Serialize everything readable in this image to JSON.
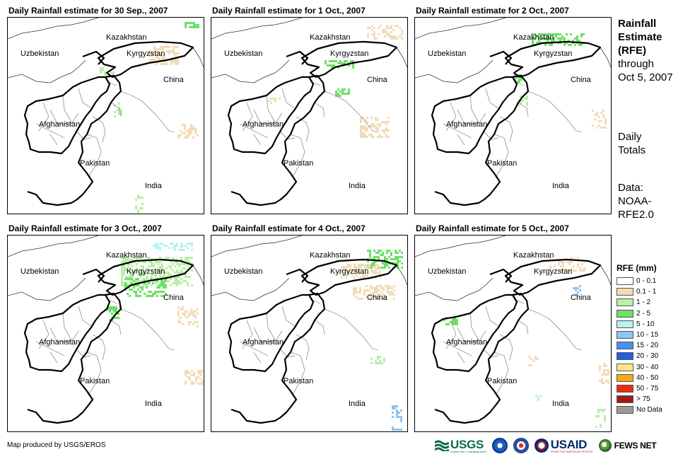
{
  "panels": [
    {
      "title": "Daily Rainfall estimate for 30 Sep., 2007",
      "labels": {
        "kazakhstan": "Kazakhstan",
        "uzbekistan": "Uzbekistan",
        "kyrgyzstan": "Kyrgyzstan",
        "china": "China",
        "afghanistan": "Afghanistan",
        "pakistan": "Pakistan",
        "india": "India"
      }
    },
    {
      "title": "Daily Rainfall estimate for 1 Oct., 2007",
      "labels": {
        "kazakhstan": "Kazakhstan",
        "uzbekistan": "Uzbekistan",
        "kyrgyzstan": "Kyrgyzstan",
        "china": "China",
        "afghanistan": "Afghanistan",
        "pakistan": "Pakistan",
        "india": "India"
      }
    },
    {
      "title": "Daily Rainfall estimate for 2 Oct., 2007",
      "labels": {
        "kazakhstan": "Kazakhstan",
        "uzbekistan": "Uzbekistan",
        "kyrgyzstan": "Kyrgyzstan",
        "china": "China",
        "afghanistan": "Afghanistan",
        "pakistan": "Pakistan",
        "india": "India"
      }
    },
    {
      "title": "Daily Rainfall estimate for 3 Oct., 2007",
      "labels": {
        "kazakhstan": "Kazakhstan",
        "uzbekistan": "Uzbekistan",
        "kyrgyzstan": "Kyrgyzstan",
        "china": "China",
        "afghanistan": "Afghanistan",
        "pakistan": "Pakistan",
        "india": "India"
      }
    },
    {
      "title": "Daily Rainfall estimate for 4 Oct., 2007",
      "labels": {
        "kazakhstan": "Kazakhstan",
        "uzbekistan": "Uzbekistan",
        "kyrgyzstan": "Kyrgyzstan",
        "china": "China",
        "afghanistan": "Afghanistan",
        "pakistan": "Pakistan",
        "india": "India"
      }
    },
    {
      "title": "Daily Rainfall estimate for 5 Oct., 2007",
      "labels": {
        "kazakhstan": "Kazakhstan",
        "uzbekistan": "Uzbekistan",
        "kyrgyzstan": "Kyrgyzstan",
        "china": "China",
        "afghanistan": "Afghanistan",
        "pakistan": "Pakistan",
        "india": "India"
      }
    }
  ],
  "side": {
    "title_bold_1": "Rainfall",
    "title_bold_2": "Estimate",
    "title_bold_3": "(RFE)",
    "title_line_4": "through",
    "title_line_5": "Oct 5, 2007",
    "totals_1": "Daily",
    "totals_2": "Totals",
    "data_1": "Data:",
    "data_2": "NOAA-",
    "data_3": "RFE2.0"
  },
  "legend": {
    "title": "RFE (mm)",
    "items": [
      {
        "label": "0 - 0.1",
        "color": "#ffffff"
      },
      {
        "label": "0.1 - 1",
        "color": "#f2dcb8"
      },
      {
        "label": "1 - 2",
        "color": "#b8f0a8"
      },
      {
        "label": "2 - 5",
        "color": "#6fe067"
      },
      {
        "label": "5 - 10",
        "color": "#b6f2f2"
      },
      {
        "label": "10 - 15",
        "color": "#8ec5f5"
      },
      {
        "label": "15 - 20",
        "color": "#4a90ee"
      },
      {
        "label": "20 - 30",
        "color": "#2060d8"
      },
      {
        "label": "30 - 40",
        "color": "#fbe68a"
      },
      {
        "label": "40 - 50",
        "color": "#f5a81a"
      },
      {
        "label": "50 - 75",
        "color": "#ee2a10"
      },
      {
        "label": "> 75",
        "color": "#a11a1a"
      },
      {
        "label": "No Data",
        "color": "#9a9a9a"
      }
    ]
  },
  "footer": {
    "credit": "Map produced by USGS/EROS",
    "logos": {
      "usgs": "USGS",
      "usgs_tagline": "science for a changing world",
      "usaid": "USAID",
      "usaid_tagline": "FROM THE AMERICAN PEOPLE",
      "fewsnet": "FEWS NET"
    }
  }
}
